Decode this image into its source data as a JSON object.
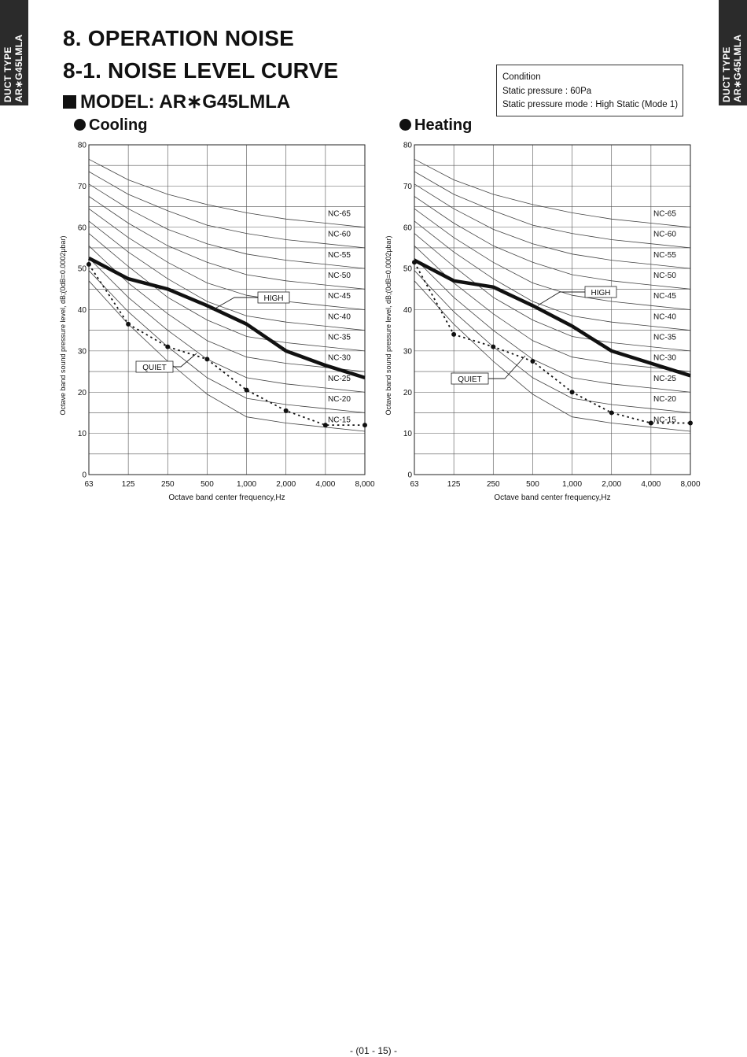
{
  "side_tab": {
    "line1": "DUCT TYPE",
    "line2": "AR∗G45LMLA"
  },
  "heading": {
    "section": "8. OPERATION NOISE",
    "subsection": "8-1. NOISE LEVEL CURVE",
    "model": "MODEL: AR∗G45LMLA"
  },
  "condition": {
    "title": "Condition",
    "static_pressure": "Static pressure : 60Pa",
    "static_mode": "Static pressure mode : High Static (Mode 1)"
  },
  "page_number": "- (01 - 15) -",
  "chart_data": [
    {
      "type": "line",
      "title": "Cooling",
      "xlabel": "Octave band center frequency,Hz",
      "ylabel": "Octave band sound pressure level, dB;(0dB=0.0002μbar)",
      "categories": [
        "63",
        "125",
        "250",
        "500",
        "1,000",
        "2,000",
        "4,000",
        "8,000"
      ],
      "ylim": [
        0,
        80
      ],
      "yticks": [
        "0",
        "10",
        "20",
        "30",
        "40",
        "50",
        "60",
        "70",
        "80"
      ],
      "grid": true,
      "series": [
        {
          "name": "HIGH",
          "style": "thick-solid",
          "values": [
            52.5,
            47.5,
            45.0,
            41.0,
            36.5,
            30.0,
            26.5,
            23.5
          ]
        },
        {
          "name": "QUIET",
          "style": "dotted-markers",
          "values": [
            51.0,
            36.5,
            31.0,
            28.0,
            20.5,
            15.5,
            12.0,
            12.0
          ]
        }
      ],
      "nc_labels": [
        "NC-65",
        "NC-60",
        "NC-55",
        "NC-50",
        "NC-45",
        "NC-40",
        "NC-35",
        "NC-30",
        "NC-25",
        "NC-20",
        "NC-15"
      ],
      "nc_label_values": [
        63.5,
        58.5,
        53.5,
        48.5,
        43.5,
        38.5,
        33.5,
        28.5,
        23.5,
        18.5,
        13.5
      ],
      "nc_curves": [
        [
          76.5,
          71.5,
          68.0,
          65.5,
          63.5,
          62.0,
          61.0,
          60.0
        ],
        [
          73.5,
          68.0,
          64.0,
          60.5,
          58.5,
          57.0,
          56.0,
          55.0
        ],
        [
          70.5,
          64.5,
          59.5,
          56.0,
          53.5,
          52.0,
          51.0,
          50.0
        ],
        [
          67.5,
          61.0,
          55.5,
          51.5,
          48.5,
          47.0,
          46.0,
          45.0
        ],
        [
          64.5,
          57.5,
          51.5,
          46.5,
          43.5,
          42.0,
          41.0,
          40.0
        ],
        [
          61.5,
          54.0,
          47.5,
          42.0,
          38.5,
          37.0,
          36.0,
          35.0
        ],
        [
          58.5,
          50.5,
          43.0,
          37.5,
          33.5,
          32.0,
          31.0,
          30.0
        ],
        [
          55.5,
          46.5,
          39.0,
          32.5,
          28.5,
          27.0,
          26.0,
          25.0
        ],
        [
          52.5,
          43.0,
          35.0,
          28.0,
          23.5,
          22.0,
          21.0,
          20.0
        ],
        [
          49.5,
          39.5,
          31.0,
          23.5,
          18.5,
          17.0,
          16.0,
          15.0
        ],
        [
          47.0,
          36.5,
          27.5,
          19.5,
          14.0,
          12.5,
          11.5,
          10.5
        ]
      ]
    },
    {
      "type": "line",
      "title": "Heating",
      "xlabel": "Octave band center frequency,Hz",
      "ylabel": "Octave band sound pressure level, dB;(0dB=0.0002μbar)",
      "categories": [
        "63",
        "125",
        "250",
        "500",
        "1,000",
        "2,000",
        "4,000",
        "8,000"
      ],
      "ylim": [
        0,
        80
      ],
      "yticks": [
        "0",
        "10",
        "20",
        "30",
        "40",
        "50",
        "60",
        "70",
        "80"
      ],
      "grid": true,
      "series": [
        {
          "name": "HIGH",
          "style": "thick-solid",
          "values": [
            52.0,
            47.0,
            45.5,
            41.0,
            36.0,
            30.0,
            27.0,
            24.0
          ]
        },
        {
          "name": "QUIET",
          "style": "dotted-markers",
          "values": [
            51.5,
            34.0,
            31.0,
            27.5,
            20.0,
            15.0,
            12.5,
            12.5
          ]
        }
      ],
      "nc_labels": [
        "NC-65",
        "NC-60",
        "NC-55",
        "NC-50",
        "NC-45",
        "NC-40",
        "NC-35",
        "NC-30",
        "NC-25",
        "NC-20",
        "NC-15"
      ],
      "nc_label_values": [
        63.5,
        58.5,
        53.5,
        48.5,
        43.5,
        38.5,
        33.5,
        28.5,
        23.5,
        18.5,
        13.5
      ],
      "nc_curves": [
        [
          76.5,
          71.5,
          68.0,
          65.5,
          63.5,
          62.0,
          61.0,
          60.0
        ],
        [
          73.5,
          68.0,
          64.0,
          60.5,
          58.5,
          57.0,
          56.0,
          55.0
        ],
        [
          70.5,
          64.5,
          59.5,
          56.0,
          53.5,
          52.0,
          51.0,
          50.0
        ],
        [
          67.5,
          61.0,
          55.5,
          51.5,
          48.5,
          47.0,
          46.0,
          45.0
        ],
        [
          64.5,
          57.5,
          51.5,
          46.5,
          43.5,
          42.0,
          41.0,
          40.0
        ],
        [
          61.5,
          54.0,
          47.5,
          42.0,
          38.5,
          37.0,
          36.0,
          35.0
        ],
        [
          58.5,
          50.5,
          43.0,
          37.5,
          33.5,
          32.0,
          31.0,
          30.0
        ],
        [
          55.5,
          46.5,
          39.0,
          32.5,
          28.5,
          27.0,
          26.0,
          25.0
        ],
        [
          52.5,
          43.0,
          35.0,
          28.0,
          23.5,
          22.0,
          21.0,
          20.0
        ],
        [
          49.5,
          39.5,
          31.0,
          23.5,
          18.5,
          17.0,
          16.0,
          15.0
        ],
        [
          47.0,
          36.5,
          27.5,
          19.5,
          14.0,
          12.5,
          11.5,
          10.5
        ]
      ]
    }
  ]
}
